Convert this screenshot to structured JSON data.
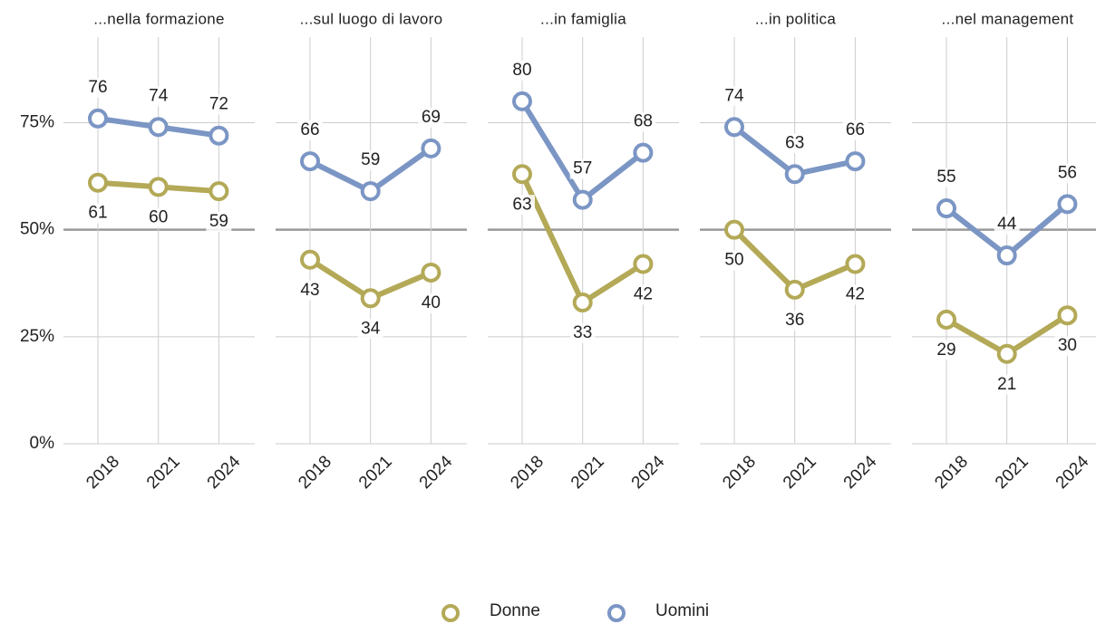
{
  "chart_data": [
    {
      "type": "line",
      "title": "...nella formazione",
      "categories": [
        "2018",
        "2021",
        "2024"
      ],
      "series": [
        {
          "name": "Donne",
          "color": "#b3a957",
          "values": [
            61,
            60,
            59
          ]
        },
        {
          "name": "Uomini",
          "color": "#7b96c4",
          "values": [
            76,
            74,
            72
          ]
        }
      ],
      "ylim": [
        0,
        95
      ],
      "yticks": [
        {
          "value": 0,
          "label": "0%"
        },
        {
          "value": 25,
          "label": "25%"
        },
        {
          "value": 50,
          "label": "50%"
        },
        {
          "value": 75,
          "label": "75%"
        }
      ],
      "reference_line": 50
    },
    {
      "type": "line",
      "title": "...sul luogo di lavoro",
      "categories": [
        "2018",
        "2021",
        "2024"
      ],
      "series": [
        {
          "color": "#b3a957",
          "values": [
            43,
            34,
            40
          ]
        },
        {
          "color": "#7b96c4",
          "values": [
            66,
            59,
            69
          ]
        }
      ],
      "ylim": [
        0,
        95
      ],
      "yticks": [
        0,
        25,
        50,
        75
      ],
      "reference_line": 50
    },
    {
      "type": "line",
      "title": "...in famiglia",
      "categories": [
        "2018",
        "2021",
        "2024"
      ],
      "series": [
        {
          "color": "#b3a957",
          "values": [
            63,
            33,
            42
          ]
        },
        {
          "color": "#7b96c4",
          "values": [
            80,
            57,
            68
          ]
        }
      ],
      "ylim": [
        0,
        95
      ],
      "yticks": [
        0,
        25,
        50,
        75
      ],
      "reference_line": 50
    },
    {
      "type": "line",
      "title": "...in politica",
      "categories": [
        "2018",
        "2021",
        "2024"
      ],
      "series": [
        {
          "color": "#b3a957",
          "values": [
            50,
            36,
            42
          ]
        },
        {
          "color": "#7b96c4",
          "values": [
            74,
            63,
            66
          ]
        }
      ],
      "ylim": [
        0,
        95
      ],
      "yticks": [
        0,
        25,
        50,
        75
      ],
      "reference_line": 50
    },
    {
      "type": "line",
      "title": "...nel management",
      "categories": [
        "2018",
        "2021",
        "2024"
      ],
      "series": [
        {
          "color": "#b3a957",
          "values": [
            29,
            21,
            30
          ]
        },
        {
          "color": "#7b96c4",
          "values": [
            55,
            44,
            56
          ]
        }
      ],
      "ylim": [
        0,
        95
      ],
      "yticks": [
        0,
        25,
        50,
        75
      ],
      "reference_line": 50
    }
  ]
}
